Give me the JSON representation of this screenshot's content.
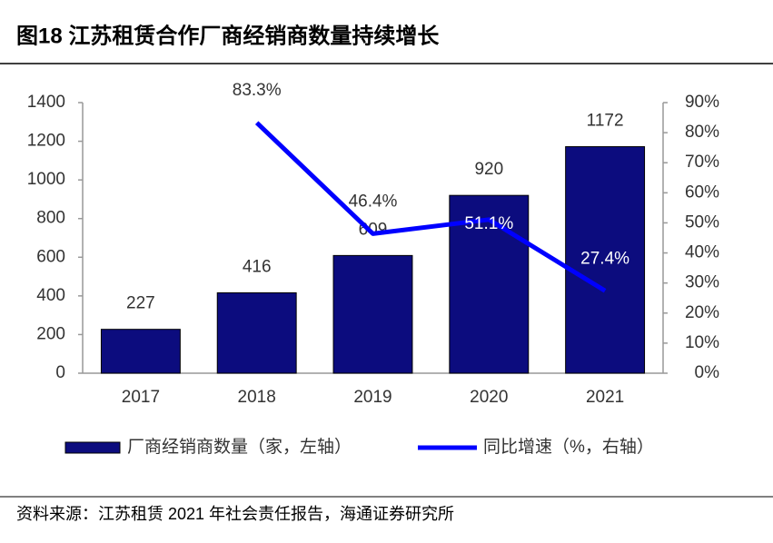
{
  "title": "图18 江苏租赁合作厂商经销商数量持续增长",
  "source": "资料来源：江苏租赁 2021 年社会责任报告，海通证券研究所",
  "chart_data": {
    "type": "bar",
    "categories": [
      "2017",
      "2018",
      "2019",
      "2020",
      "2021"
    ],
    "series": [
      {
        "name": "厂商经销商数量（家，左轴）",
        "type": "bar",
        "color": "#0c0c7e",
        "values": [
          227,
          416,
          609,
          920,
          1172
        ]
      },
      {
        "name": "同比增速（%，右轴）",
        "type": "line",
        "axis": "y2",
        "color": "#0000ff",
        "values": [
          null,
          83.3,
          46.4,
          51.1,
          27.4
        ],
        "value_labels": [
          null,
          "83.3%",
          "46.4%",
          "51.1%",
          "27.4%"
        ]
      }
    ],
    "ylim": [
      0,
      1400
    ],
    "yticks": [
      0,
      200,
      400,
      600,
      800,
      1000,
      1200,
      1400
    ],
    "y2lim": [
      0,
      90
    ],
    "y2ticks": [
      {
        "value": 0,
        "label": "0%"
      },
      {
        "value": 10,
        "label": "10%"
      },
      {
        "value": 20,
        "label": "20%"
      },
      {
        "value": 30,
        "label": "30%"
      },
      {
        "value": 40,
        "label": "40%"
      },
      {
        "value": 50,
        "label": "50%"
      },
      {
        "value": 60,
        "label": "60%"
      },
      {
        "value": 70,
        "label": "70%"
      },
      {
        "value": 80,
        "label": "80%"
      },
      {
        "value": 90,
        "label": "90%"
      }
    ],
    "legend": "bottom"
  }
}
